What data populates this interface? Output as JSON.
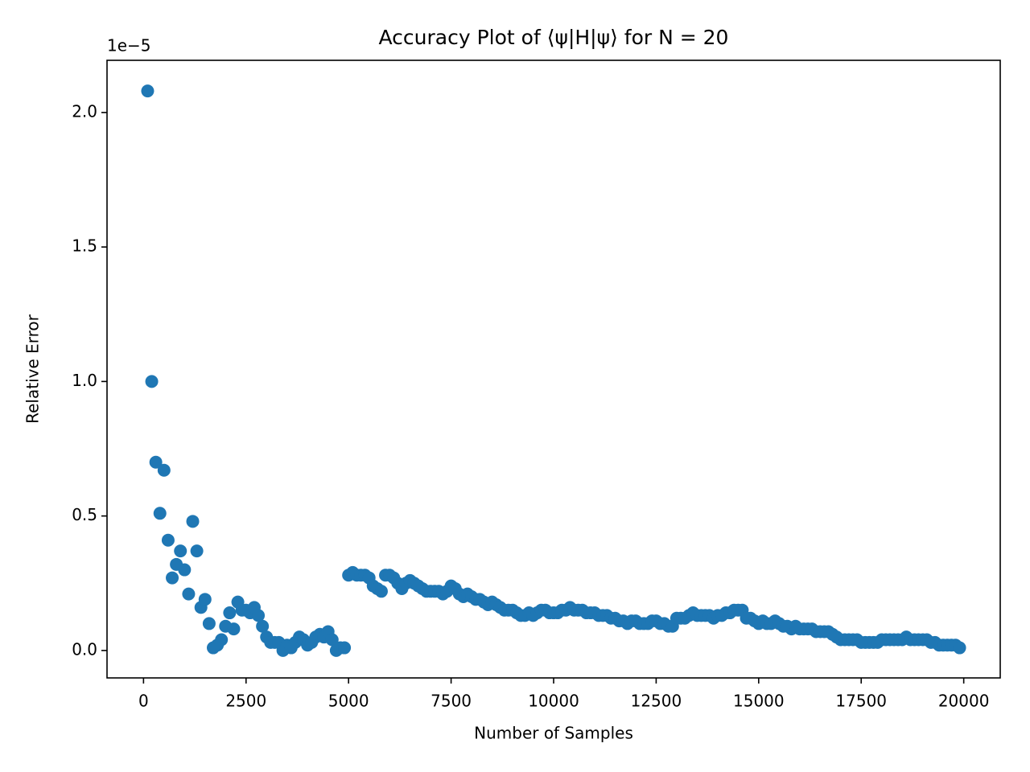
{
  "chart_data": {
    "type": "scatter",
    "title": "Accuracy Plot of ⟨ψ|H|ψ⟩ for N = 20",
    "x_label": "Number of Samples",
    "y_label": "Relative Error",
    "y_offset_label": "1e−5",
    "color": "#1f77b4",
    "grid": false,
    "xlim": [
      -890,
      20890
    ],
    "ylim": [
      -0.102,
      2.194
    ],
    "xticks": [
      0,
      2500,
      5000,
      7500,
      10000,
      12500,
      15000,
      17500,
      20000
    ],
    "yticks": [
      {
        "value": 0,
        "label": "0.0"
      },
      0.5,
      {
        "value": 1,
        "label": "1.0"
      },
      1.5,
      {
        "value": 2,
        "label": "2.0"
      }
    ],
    "x": [
      100,
      200,
      300,
      400,
      500,
      600,
      700,
      800,
      900,
      1000,
      1100,
      1200,
      1300,
      1400,
      1500,
      1600,
      1700,
      1800,
      1900,
      2000,
      2100,
      2200,
      2300,
      2400,
      2500,
      2600,
      2700,
      2800,
      2900,
      3000,
      3100,
      3200,
      3300,
      3400,
      3500,
      3600,
      3700,
      3800,
      3900,
      4000,
      4100,
      4200,
      4300,
      4400,
      4500,
      4600,
      4700,
      4800,
      4900,
      5000,
      5100,
      5200,
      5300,
      5400,
      5500,
      5600,
      5700,
      5800,
      5900,
      6000,
      6100,
      6200,
      6300,
      6400,
      6500,
      6600,
      6700,
      6800,
      6900,
      7000,
      7100,
      7200,
      7300,
      7400,
      7500,
      7600,
      7700,
      7800,
      7900,
      8000,
      8100,
      8200,
      8300,
      8400,
      8500,
      8600,
      8700,
      8800,
      8900,
      9000,
      9100,
      9200,
      9300,
      9400,
      9500,
      9600,
      9700,
      9800,
      9900,
      10000,
      10100,
      10200,
      10300,
      10400,
      10500,
      10600,
      10700,
      10800,
      10900,
      11000,
      11100,
      11200,
      11300,
      11400,
      11500,
      11600,
      11700,
      11800,
      11900,
      12000,
      12100,
      12200,
      12300,
      12400,
      12500,
      12600,
      12700,
      12800,
      12900,
      13000,
      13100,
      13200,
      13300,
      13400,
      13500,
      13600,
      13700,
      13800,
      13900,
      14000,
      14100,
      14200,
      14300,
      14400,
      14500,
      14600,
      14700,
      14800,
      14900,
      15000,
      15100,
      15200,
      15300,
      15400,
      15500,
      15600,
      15700,
      15800,
      15900,
      16000,
      16100,
      16200,
      16300,
      16400,
      16500,
      16600,
      16700,
      16800,
      16900,
      17000,
      17100,
      17200,
      17300,
      17400,
      17500,
      17600,
      17700,
      17800,
      17900,
      18000,
      18100,
      18200,
      18300,
      18400,
      18500,
      18600,
      18700,
      18800,
      18900,
      19000,
      19100,
      19200,
      19300,
      19400,
      19500,
      19600,
      19700,
      19800,
      19900
    ],
    "values": [
      2.08,
      1.0,
      0.7,
      0.51,
      0.67,
      0.41,
      0.27,
      0.32,
      0.37,
      0.3,
      0.21,
      0.48,
      0.37,
      0.16,
      0.19,
      0.1,
      0.01,
      0.02,
      0.04,
      0.09,
      0.14,
      0.08,
      0.18,
      0.15,
      0.15,
      0.14,
      0.16,
      0.13,
      0.09,
      0.05,
      0.03,
      0.03,
      0.03,
      0.0,
      0.02,
      0.01,
      0.03,
      0.05,
      0.04,
      0.02,
      0.03,
      0.05,
      0.06,
      0.05,
      0.07,
      0.04,
      0.0,
      0.01,
      0.01,
      0.28,
      0.29,
      0.28,
      0.28,
      0.28,
      0.27,
      0.24,
      0.23,
      0.22,
      0.28,
      0.28,
      0.27,
      0.25,
      0.23,
      0.25,
      0.26,
      0.25,
      0.24,
      0.23,
      0.22,
      0.22,
      0.22,
      0.22,
      0.21,
      0.22,
      0.24,
      0.23,
      0.21,
      0.2,
      0.21,
      0.2,
      0.19,
      0.19,
      0.18,
      0.17,
      0.18,
      0.17,
      0.16,
      0.15,
      0.15,
      0.15,
      0.14,
      0.13,
      0.13,
      0.14,
      0.13,
      0.14,
      0.15,
      0.15,
      0.14,
      0.14,
      0.14,
      0.15,
      0.15,
      0.16,
      0.15,
      0.15,
      0.15,
      0.14,
      0.14,
      0.14,
      0.13,
      0.13,
      0.13,
      0.12,
      0.12,
      0.11,
      0.11,
      0.1,
      0.11,
      0.11,
      0.1,
      0.1,
      0.1,
      0.11,
      0.11,
      0.1,
      0.1,
      0.09,
      0.09,
      0.12,
      0.12,
      0.12,
      0.13,
      0.14,
      0.13,
      0.13,
      0.13,
      0.13,
      0.12,
      0.13,
      0.13,
      0.14,
      0.14,
      0.15,
      0.15,
      0.15,
      0.12,
      0.12,
      0.11,
      0.1,
      0.11,
      0.1,
      0.1,
      0.11,
      0.1,
      0.09,
      0.09,
      0.08,
      0.09,
      0.08,
      0.08,
      0.08,
      0.08,
      0.07,
      0.07,
      0.07,
      0.07,
      0.06,
      0.05,
      0.04,
      0.04,
      0.04,
      0.04,
      0.04,
      0.03,
      0.03,
      0.03,
      0.03,
      0.03,
      0.04,
      0.04,
      0.04,
      0.04,
      0.04,
      0.04,
      0.05,
      0.04,
      0.04,
      0.04,
      0.04,
      0.04,
      0.03,
      0.03,
      0.02,
      0.02,
      0.02,
      0.02,
      0.02,
      0.01
    ]
  }
}
